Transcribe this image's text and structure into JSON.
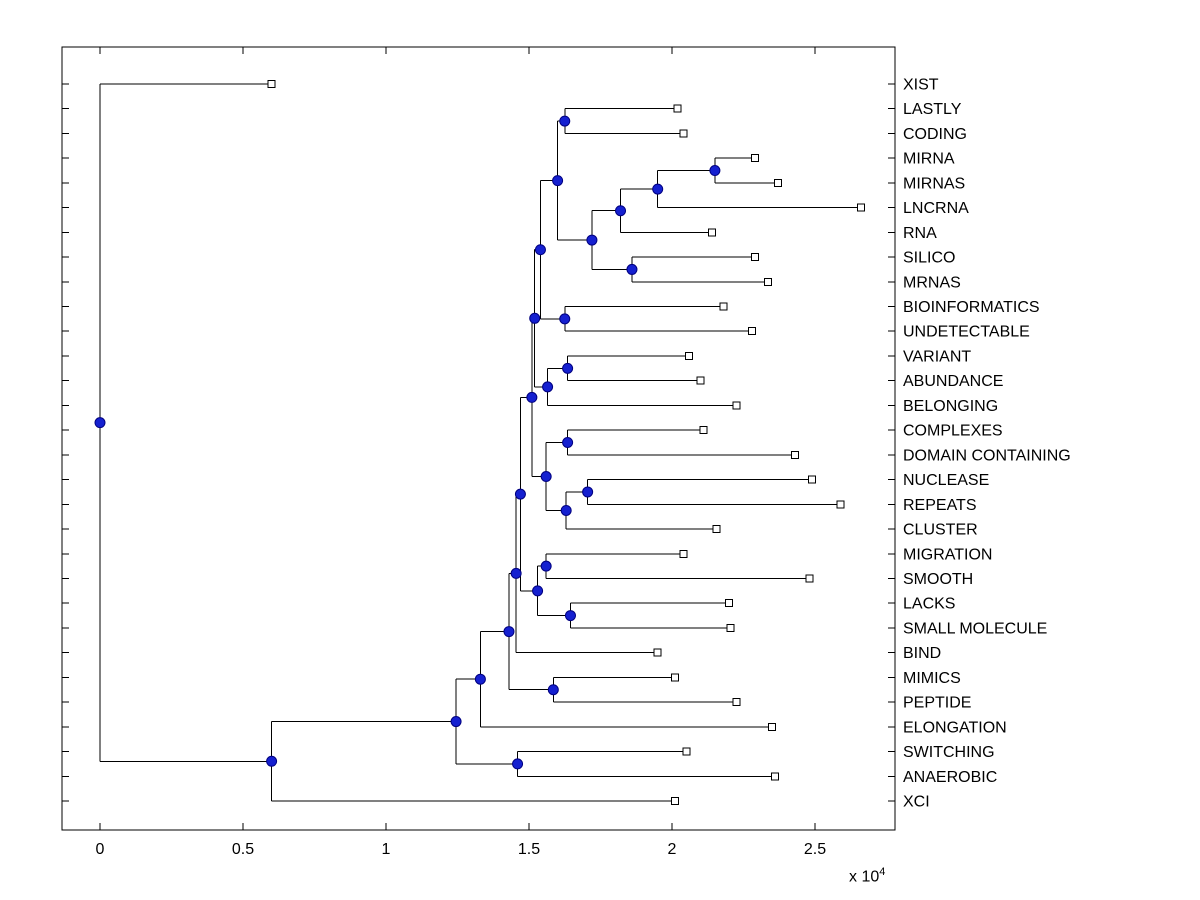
{
  "chart_data": {
    "type": "dendrogram",
    "orientation": "horizontal-right",
    "title": "",
    "xlabel": "",
    "ylabel": "",
    "exponent_base": "x 10",
    "exponent_power": "4",
    "xlim": [
      -1300,
      27800
    ],
    "grid": false,
    "legend": "none",
    "x_ticks": [
      "0",
      "0.5",
      "1",
      "1.5",
      "2",
      "2.5"
    ],
    "x_tick_values": [
      0,
      5000,
      10000,
      15000,
      20000,
      25000
    ],
    "colors": {
      "line": "#000000",
      "internal_node_fill": "#1520d0",
      "internal_node_edge": "#000080",
      "leaf_node_fill": "#ffffff",
      "leaf_node_edge": "#000000",
      "axis": "#000000",
      "text": "#000000"
    },
    "leaves": [
      {
        "label": "XIST",
        "x": 6000
      },
      {
        "label": "LASTLY",
        "x": 20200
      },
      {
        "label": "CODING",
        "x": 20400
      },
      {
        "label": "MIRNA",
        "x": 22900
      },
      {
        "label": "MIRNAS",
        "x": 23700
      },
      {
        "label": "LNCRNA",
        "x": 26600
      },
      {
        "label": "RNA",
        "x": 21400
      },
      {
        "label": "SILICO",
        "x": 22900
      },
      {
        "label": "MRNAS",
        "x": 23350
      },
      {
        "label": "BIOINFORMATICS",
        "x": 21800
      },
      {
        "label": "UNDETECTABLE",
        "x": 22800
      },
      {
        "label": "VARIANT",
        "x": 20600
      },
      {
        "label": "ABUNDANCE",
        "x": 21000
      },
      {
        "label": "BELONGING",
        "x": 22250
      },
      {
        "label": "COMPLEXES",
        "x": 21100
      },
      {
        "label": "DOMAIN CONTAINING",
        "x": 24300
      },
      {
        "label": "NUCLEASE",
        "x": 24900
      },
      {
        "label": "REPEATS",
        "x": 25900
      },
      {
        "label": "CLUSTER",
        "x": 21550
      },
      {
        "label": "MIGRATION",
        "x": 20400
      },
      {
        "label": "SMOOTH",
        "x": 24800
      },
      {
        "label": "LACKS",
        "x": 22000
      },
      {
        "label": "SMALL MOLECULE",
        "x": 22050
      },
      {
        "label": "BIND",
        "x": 19500
      },
      {
        "label": "MIMICS",
        "x": 20100
      },
      {
        "label": "PEPTIDE",
        "x": 22250
      },
      {
        "label": "ELONGATION",
        "x": 23500
      },
      {
        "label": "SWITCHING",
        "x": 20500
      },
      {
        "label": "ANAEROBIC",
        "x": 23600
      },
      {
        "label": "XCI",
        "x": 20100
      }
    ],
    "tree": {
      "x": 0,
      "children": [
        {
          "leaf": "XIST"
        },
        {
          "x": 6000,
          "children": [
            {
              "x": 12450,
              "children": [
                {
                  "x": 13300,
                  "children": [
                    {
                      "x": 14300,
                      "children": [
                        {
                          "x": 14550,
                          "children": [
                            {
                              "x": 14700,
                              "children": [
                                {
                                  "x": 15100,
                                  "children": [
                                    {
                                      "x": 15200,
                                      "children": [
                                        {
                                          "x": 15400,
                                          "children": [
                                            {
                                              "x": 16000,
                                              "children": [
                                                {
                                                  "x": 16250,
                                                  "children": [
                                                    {
                                                      "leaf": "LASTLY"
                                                    },
                                                    {
                                                      "leaf": "CODING"
                                                    }
                                                  ]
                                                },
                                                {
                                                  "x": 17200,
                                                  "children": [
                                                    {
                                                      "x": 18200,
                                                      "children": [
                                                        {
                                                          "x": 19500,
                                                          "children": [
                                                            {
                                                              "x": 21500,
                                                              "children": [
                                                                {
                                                                  "leaf": "MIRNA"
                                                                },
                                                                {
                                                                  "leaf": "MIRNAS"
                                                                }
                                                              ]
                                                            },
                                                            {
                                                              "leaf": "LNCRNA"
                                                            }
                                                          ]
                                                        },
                                                        {
                                                          "leaf": "RNA"
                                                        }
                                                      ]
                                                    },
                                                    {
                                                      "x": 18600,
                                                      "children": [
                                                        {
                                                          "leaf": "SILICO"
                                                        },
                                                        {
                                                          "leaf": "MRNAS"
                                                        }
                                                      ]
                                                    }
                                                  ]
                                                }
                                              ]
                                            },
                                            {
                                              "x": 16250,
                                              "children": [
                                                {
                                                  "leaf": "BIOINFORMATICS"
                                                },
                                                {
                                                  "leaf": "UNDETECTABLE"
                                                }
                                              ]
                                            }
                                          ]
                                        },
                                        {
                                          "x": 15650,
                                          "children": [
                                            {
                                              "x": 16350,
                                              "children": [
                                                {
                                                  "leaf": "VARIANT"
                                                },
                                                {
                                                  "leaf": "ABUNDANCE"
                                                }
                                              ]
                                            },
                                            {
                                              "leaf": "BELONGING"
                                            }
                                          ]
                                        }
                                      ]
                                    },
                                    {
                                      "x": 15600,
                                      "children": [
                                        {
                                          "x": 16350,
                                          "children": [
                                            {
                                              "leaf": "COMPLEXES"
                                            },
                                            {
                                              "leaf": "DOMAIN CONTAINING"
                                            }
                                          ]
                                        },
                                        {
                                          "x": 16300,
                                          "children": [
                                            {
                                              "x": 17050,
                                              "children": [
                                                {
                                                  "leaf": "NUCLEASE"
                                                },
                                                {
                                                  "leaf": "REPEATS"
                                                }
                                              ]
                                            },
                                            {
                                              "leaf": "CLUSTER"
                                            }
                                          ]
                                        }
                                      ]
                                    }
                                  ]
                                },
                                {
                                  "x": 15300,
                                  "children": [
                                    {
                                      "x": 15600,
                                      "children": [
                                        {
                                          "leaf": "MIGRATION"
                                        },
                                        {
                                          "leaf": "SMOOTH"
                                        }
                                      ]
                                    },
                                    {
                                      "x": 16450,
                                      "children": [
                                        {
                                          "leaf": "LACKS"
                                        },
                                        {
                                          "leaf": "SMALL MOLECULE"
                                        }
                                      ]
                                    }
                                  ]
                                }
                              ]
                            },
                            {
                              "leaf": "BIND"
                            }
                          ]
                        },
                        {
                          "x": 15850,
                          "children": [
                            {
                              "leaf": "MIMICS"
                            },
                            {
                              "leaf": "PEPTIDE"
                            }
                          ]
                        }
                      ]
                    },
                    {
                      "leaf": "ELONGATION"
                    }
                  ]
                },
                {
                  "x": 14600,
                  "children": [
                    {
                      "leaf": "SWITCHING"
                    },
                    {
                      "leaf": "ANAEROBIC"
                    }
                  ]
                }
              ]
            },
            {
              "leaf": "XCI"
            }
          ]
        }
      ]
    }
  }
}
